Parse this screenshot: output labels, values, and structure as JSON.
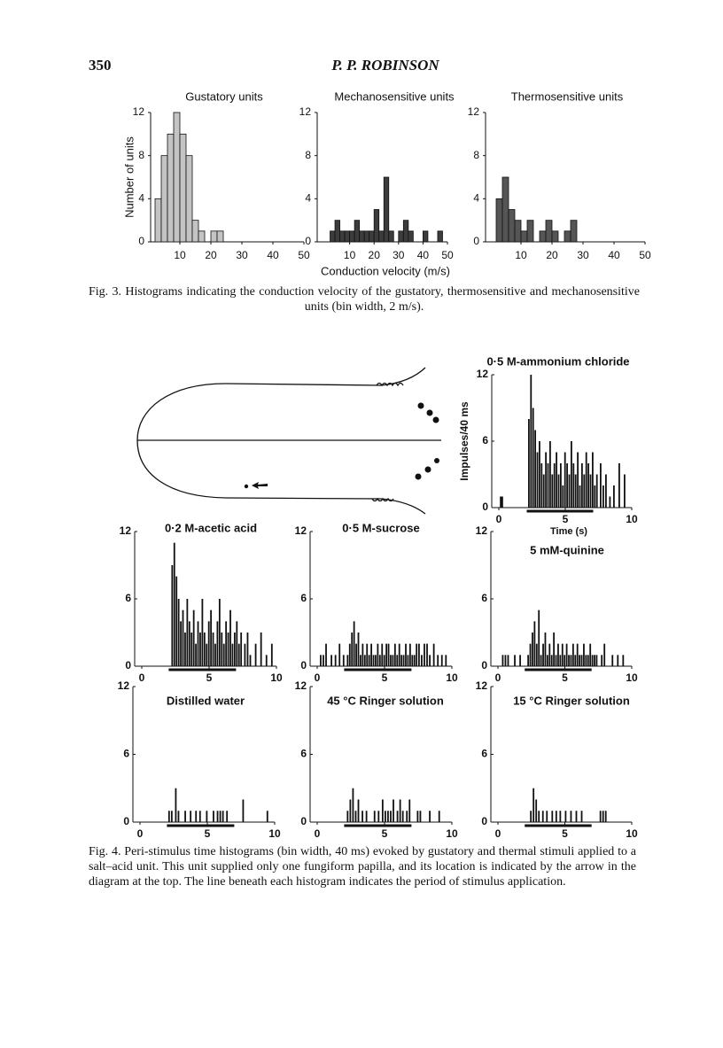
{
  "header": {
    "page_number": "350",
    "author": "P. P. ROBINSON"
  },
  "figure3": {
    "y_label": "Number of units",
    "x_label": "Conduction velocity (m/s)",
    "caption": "Fig. 3. Histograms indicating the conduction velocity of the gustatory, thermosensitive and mechanosensitive units (bin width, 2 m/s)."
  },
  "figure4": {
    "caption": "Fig. 4. Peri-stimulus time histograms (bin width, 40 ms) evoked by gustatory and thermal stimuli applied to a salt–acid unit. This unit supplied only one fungiform papilla, and its location is indicated by the arrow in the diagram at the top. The line beneath each histogram indicates the period of stimulus application."
  },
  "chart_data": [
    {
      "type": "histogram",
      "title": "Gustatory units",
      "color": "#c4c4c4",
      "bins": [
        0,
        2,
        4,
        6,
        8,
        10,
        12,
        14,
        16,
        18,
        20,
        22,
        24,
        26,
        28,
        30,
        32,
        34,
        36,
        38,
        40,
        42,
        44,
        46,
        48,
        50
      ],
      "values": [
        0,
        4,
        8,
        10,
        12,
        10,
        8,
        2,
        1,
        0,
        1,
        1,
        0,
        0,
        0,
        0,
        0,
        0,
        0,
        0,
        0,
        0,
        0,
        0,
        0
      ],
      "xlim": [
        0,
        50
      ],
      "ylim": [
        0,
        12
      ],
      "xticks": [
        10,
        20,
        30,
        40,
        50
      ],
      "yticks": [
        0,
        4,
        8,
        12
      ]
    },
    {
      "type": "histogram",
      "title": "Mechanosensitive units",
      "color": "#3c3c3c",
      "bins": [
        0,
        2,
        4,
        6,
        8,
        10,
        12,
        14,
        16,
        18,
        20,
        22,
        24,
        26,
        28,
        30,
        32,
        34,
        36,
        38,
        40,
        42,
        44,
        46,
        48,
        50
      ],
      "values": [
        0,
        1,
        2,
        1,
        1,
        1,
        2,
        1,
        1,
        1,
        3,
        1,
        6,
        1,
        0,
        1,
        2,
        1,
        0,
        0,
        1,
        0,
        0,
        1,
        0
      ],
      "xlim": [
        0,
        50
      ],
      "ylim": [
        0,
        12
      ],
      "xticks": [
        10,
        20,
        30,
        40,
        50
      ],
      "yticks": [
        0,
        4,
        8,
        12
      ]
    },
    {
      "type": "histogram",
      "title": "Thermosensitive units",
      "color": "#555555",
      "bins": [
        0,
        2,
        4,
        6,
        8,
        10,
        12,
        14,
        16,
        18,
        20,
        22,
        24,
        26,
        28,
        30,
        32,
        34,
        36,
        38,
        40,
        42,
        44,
        46,
        48,
        50
      ],
      "values": [
        0,
        4,
        6,
        3,
        2,
        1,
        2,
        0,
        1,
        2,
        1,
        0,
        1,
        2,
        0,
        0,
        0,
        0,
        0,
        0,
        0,
        0,
        0,
        0,
        0
      ],
      "xlim": [
        0,
        50
      ],
      "ylim": [
        0,
        12
      ],
      "xticks": [
        10,
        20,
        30,
        40,
        50
      ],
      "yticks": [
        0,
        4,
        8,
        12
      ]
    },
    {
      "type": "bar",
      "title": "0·5 M-ammonium chloride",
      "y_label": "Impulses/40 ms",
      "x_label": "Time (s)",
      "color": "#111111",
      "x": [
        0.08,
        0.2,
        2.2,
        2.36,
        2.52,
        2.68,
        2.84,
        3.0,
        3.16,
        3.32,
        3.48,
        3.64,
        3.8,
        3.96,
        4.12,
        4.28,
        4.44,
        4.6,
        4.76,
        4.92,
        5.08,
        5.24,
        5.4,
        5.56,
        5.72,
        5.88,
        6.04,
        6.2,
        6.36,
        6.52,
        6.68,
        6.84,
        7.0,
        7.16,
        7.32,
        7.6,
        7.8,
        8.0,
        8.3,
        8.6,
        9.0,
        9.4
      ],
      "values": [
        1,
        1,
        8,
        12,
        9,
        7,
        5,
        6,
        4,
        3,
        5,
        4,
        6,
        3,
        4,
        5,
        3,
        4,
        2,
        5,
        4,
        3,
        6,
        4,
        3,
        5,
        2,
        4,
        3,
        5,
        4,
        3,
        5,
        2,
        3,
        4,
        2,
        3,
        1,
        2,
        4,
        3
      ],
      "stimulus": [
        2.1,
        7.1
      ],
      "xlim": [
        0,
        10
      ],
      "ylim": [
        0,
        12
      ],
      "xticks": [
        0,
        5,
        10
      ],
      "yticks": [
        0,
        6,
        12
      ]
    },
    {
      "type": "bar",
      "title": "0·2 M-acetic acid",
      "color": "#111111",
      "x": [
        2.2,
        2.36,
        2.52,
        2.68,
        2.84,
        3.0,
        3.16,
        3.32,
        3.48,
        3.64,
        3.8,
        3.96,
        4.12,
        4.28,
        4.44,
        4.6,
        4.76,
        4.92,
        5.08,
        5.24,
        5.4,
        5.56,
        5.72,
        5.88,
        6.04,
        6.2,
        6.36,
        6.52,
        6.68,
        6.84,
        7.0,
        7.16,
        7.32,
        7.6,
        7.8,
        8.0,
        8.4,
        8.8,
        9.2,
        9.6
      ],
      "values": [
        9,
        11,
        8,
        6,
        4,
        5,
        3,
        6,
        4,
        3,
        5,
        2,
        4,
        3,
        6,
        3,
        2,
        4,
        5,
        3,
        2,
        4,
        6,
        3,
        2,
        4,
        3,
        5,
        2,
        3,
        4,
        2,
        3,
        2,
        3,
        1,
        2,
        3,
        1,
        2
      ],
      "stimulus": [
        2,
        7
      ],
      "xlim": [
        0,
        10
      ],
      "ylim": [
        0,
        12
      ],
      "xticks": [
        0,
        5,
        10
      ],
      "yticks": [
        0,
        6,
        12
      ]
    },
    {
      "type": "bar",
      "title": "0·5 M-sucrose",
      "color": "#111111",
      "x": [
        0.2,
        0.4,
        0.6,
        1.0,
        1.3,
        1.6,
        1.9,
        2.2,
        2.36,
        2.52,
        2.68,
        2.84,
        3.0,
        3.16,
        3.32,
        3.48,
        3.64,
        3.8,
        3.96,
        4.12,
        4.28,
        4.44,
        4.6,
        4.76,
        4.92,
        5.08,
        5.24,
        5.4,
        5.56,
        5.72,
        5.88,
        6.04,
        6.2,
        6.36,
        6.52,
        6.68,
        6.84,
        7.0,
        7.16,
        7.32,
        7.5,
        7.7,
        7.9,
        8.1,
        8.3,
        8.6,
        8.9,
        9.2,
        9.5
      ],
      "values": [
        1,
        1,
        2,
        1,
        1,
        2,
        1,
        1,
        2,
        3,
        4,
        2,
        3,
        1,
        2,
        1,
        2,
        1,
        2,
        1,
        1,
        2,
        1,
        2,
        1,
        2,
        2,
        1,
        1,
        2,
        1,
        2,
        1,
        1,
        2,
        1,
        2,
        1,
        1,
        2,
        2,
        1,
        2,
        2,
        1,
        2,
        1,
        1,
        1
      ],
      "stimulus": [
        2,
        7
      ],
      "xlim": [
        0,
        10
      ],
      "ylim": [
        0,
        12
      ],
      "xticks": [
        0,
        5,
        10
      ],
      "yticks": [
        0,
        6,
        12
      ]
    },
    {
      "type": "bar",
      "title": "5 mM-quinine",
      "color": "#111111",
      "x": [
        0.3,
        0.5,
        0.7,
        1.2,
        1.6,
        2.2,
        2.36,
        2.52,
        2.68,
        2.84,
        3.0,
        3.16,
        3.32,
        3.48,
        3.64,
        3.8,
        3.96,
        4.12,
        4.28,
        4.44,
        4.6,
        4.76,
        4.92,
        5.08,
        5.24,
        5.4,
        5.56,
        5.72,
        5.88,
        6.04,
        6.2,
        6.36,
        6.52,
        6.68,
        6.84,
        7.0,
        7.16,
        7.32,
        7.7,
        7.9,
        8.5,
        8.9,
        9.3
      ],
      "values": [
        1,
        1,
        1,
        1,
        1,
        1,
        2,
        3,
        4,
        2,
        5,
        1,
        2,
        3,
        1,
        2,
        1,
        3,
        1,
        2,
        1,
        2,
        1,
        2,
        1,
        1,
        2,
        1,
        2,
        1,
        1,
        2,
        1,
        1,
        2,
        1,
        1,
        1,
        1,
        2,
        1,
        1,
        1
      ],
      "stimulus": [
        2,
        7
      ],
      "xlim": [
        0,
        10
      ],
      "ylim": [
        0,
        12
      ],
      "xticks": [
        0,
        5,
        10
      ],
      "yticks": [
        0,
        6,
        12
      ]
    },
    {
      "type": "bar",
      "title": "Distilled water",
      "color": "#111111",
      "x": [
        2.1,
        2.3,
        2.6,
        2.8,
        3.3,
        3.7,
        4.1,
        4.4,
        4.9,
        5.4,
        5.7,
        5.9,
        6.1,
        6.4,
        7.6,
        9.4
      ],
      "values": [
        1,
        1,
        3,
        1,
        1,
        1,
        1,
        1,
        1,
        1,
        1,
        1,
        1,
        1,
        2,
        1
      ],
      "stimulus": [
        2,
        7
      ],
      "xlim": [
        0,
        10
      ],
      "ylim": [
        0,
        12
      ],
      "xticks": [
        0,
        5,
        10
      ],
      "yticks": [
        0,
        6,
        12
      ]
    },
    {
      "type": "bar",
      "title": "45 °C Ringer solution",
      "color": "#111111",
      "x": [
        2.2,
        2.4,
        2.6,
        2.8,
        3.0,
        3.3,
        3.6,
        4.2,
        4.5,
        4.8,
        5.0,
        5.2,
        5.4,
        5.6,
        5.9,
        6.1,
        6.3,
        6.6,
        6.8,
        7.4,
        7.6,
        8.3,
        9.0
      ],
      "values": [
        1,
        2,
        3,
        1,
        2,
        1,
        1,
        1,
        1,
        2,
        1,
        1,
        1,
        2,
        1,
        2,
        1,
        1,
        2,
        1,
        1,
        1,
        1
      ],
      "stimulus": [
        2,
        7
      ],
      "xlim": [
        0,
        10
      ],
      "ylim": [
        0,
        12
      ],
      "xticks": [
        0,
        5,
        10
      ],
      "yticks": [
        0,
        6,
        12
      ]
    },
    {
      "type": "bar",
      "title": "15 °C Ringer solution",
      "color": "#111111",
      "x": [
        2.4,
        2.6,
        2.8,
        3.0,
        3.3,
        3.6,
        4.0,
        4.3,
        4.6,
        5.0,
        5.4,
        5.8,
        6.2,
        7.6,
        7.8,
        8.0
      ],
      "values": [
        1,
        3,
        2,
        1,
        1,
        1,
        1,
        1,
        1,
        1,
        1,
        1,
        1,
        1,
        1,
        1
      ],
      "stimulus": [
        2,
        7
      ],
      "xlim": [
        0,
        10
      ],
      "ylim": [
        0,
        12
      ],
      "xticks": [
        0,
        5,
        10
      ],
      "yticks": [
        0,
        6,
        12
      ]
    }
  ]
}
